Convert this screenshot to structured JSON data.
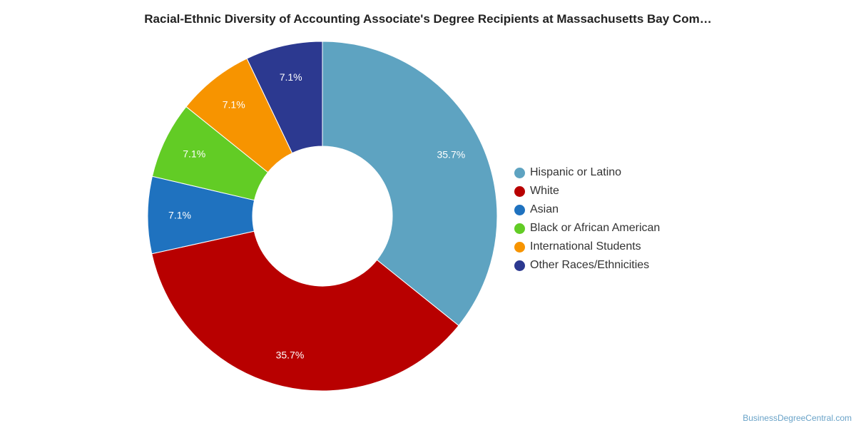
{
  "chart_data": {
    "type": "pie",
    "title": "Racial-Ethnic Diversity of Accounting Associate's Degree Recipients at Massachusetts Bay Com…",
    "legend_position": "right",
    "categories": [
      "Hispanic or Latino",
      "White",
      "Asian",
      "Black or African American",
      "International Students",
      "Other Races/Ethnicities"
    ],
    "values": [
      35.7,
      35.7,
      7.1,
      7.1,
      7.1,
      7.1
    ],
    "value_labels": [
      "35.7%",
      "35.7%",
      "7.1%",
      "7.1%",
      "7.1%",
      "7.1%"
    ],
    "colors": [
      "#5ea3c1",
      "#b80000",
      "#1f72bf",
      "#62cc25",
      "#f79400",
      "#2c3990"
    ]
  },
  "credit": "BusinessDegreeCentral.com"
}
